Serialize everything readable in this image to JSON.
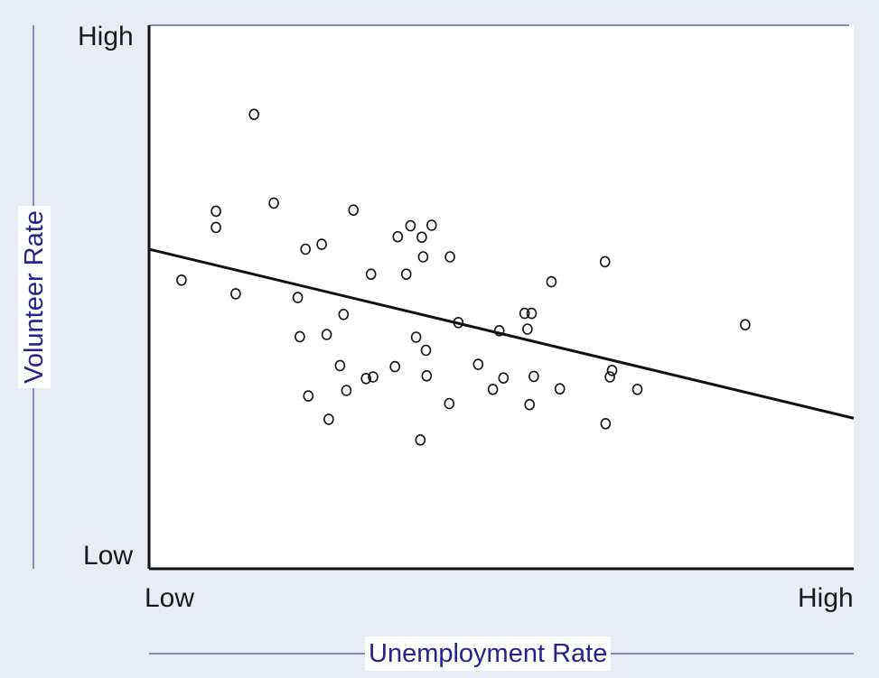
{
  "chart_data": {
    "type": "scatter",
    "xlabel": "Unemployment Rate",
    "ylabel": "Volunteer Rate",
    "xlim": [
      0,
      100
    ],
    "ylim": [
      0,
      100
    ],
    "x_tick_labels": [
      "Low",
      "High"
    ],
    "y_tick_labels": [
      "Low",
      "High"
    ],
    "grid": false,
    "legend": "none",
    "colors": {
      "axis": "#111111",
      "frame_line": "#8a8ab8",
      "title_text": "#23238e",
      "background": "#e8edf5",
      "plot_bg": "#ffffff"
    },
    "points": [
      [
        4.6,
        53.1
      ],
      [
        9.5,
        65.8
      ],
      [
        9.5,
        62.8
      ],
      [
        12.3,
        50.6
      ],
      [
        14.9,
        83.6
      ],
      [
        17.7,
        67.3
      ],
      [
        21.1,
        49.9
      ],
      [
        21.4,
        42.7
      ],
      [
        22.2,
        58.8
      ],
      [
        22.6,
        31.8
      ],
      [
        24.5,
        59.7
      ],
      [
        25.2,
        43.1
      ],
      [
        25.5,
        27.5
      ],
      [
        27.1,
        37.4
      ],
      [
        27.6,
        46.8
      ],
      [
        28.0,
        32.8
      ],
      [
        29.0,
        66.0
      ],
      [
        30.8,
        35.0
      ],
      [
        31.5,
        54.2
      ],
      [
        31.8,
        35.3
      ],
      [
        34.9,
        37.2
      ],
      [
        35.3,
        61.1
      ],
      [
        36.5,
        54.2
      ],
      [
        37.1,
        63.1
      ],
      [
        37.9,
        42.6
      ],
      [
        38.5,
        23.7
      ],
      [
        38.7,
        61.0
      ],
      [
        38.9,
        57.4
      ],
      [
        39.3,
        40.2
      ],
      [
        39.4,
        35.5
      ],
      [
        40.1,
        63.2
      ],
      [
        42.6,
        30.4
      ],
      [
        42.7,
        57.4
      ],
      [
        43.9,
        45.3
      ],
      [
        46.7,
        37.6
      ],
      [
        48.8,
        33.0
      ],
      [
        49.7,
        43.8
      ],
      [
        50.3,
        35.1
      ],
      [
        53.3,
        47.0
      ],
      [
        53.7,
        44.1
      ],
      [
        54.0,
        30.2
      ],
      [
        54.3,
        47.0
      ],
      [
        54.6,
        35.4
      ],
      [
        58.3,
        33.1
      ],
      [
        57.1,
        52.8
      ],
      [
        64.7,
        56.5
      ],
      [
        64.8,
        26.7
      ],
      [
        65.4,
        35.3
      ],
      [
        65.7,
        36.5
      ],
      [
        69.3,
        33.0
      ],
      [
        84.6,
        44.9
      ]
    ],
    "trend_line": {
      "x": [
        0,
        100
      ],
      "y": [
        58.8,
        27.7
      ]
    }
  }
}
